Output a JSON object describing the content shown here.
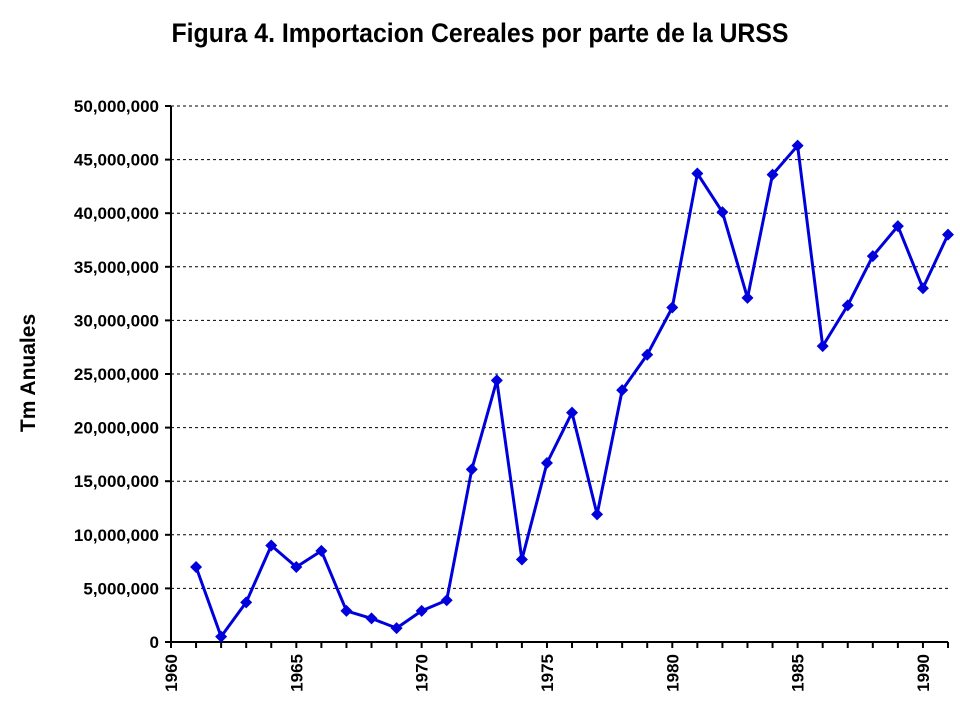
{
  "chart_data": {
    "type": "line",
    "title": "Figura 4. Importacion Cereales por parte de la URSS",
    "xlabel": "",
    "ylabel": "Tm Anuales",
    "xlim": [
      1960,
      1991
    ],
    "ylim": [
      0,
      50000000
    ],
    "x_ticks": [
      1960,
      1965,
      1970,
      1975,
      1980,
      1985,
      1990
    ],
    "x_tick_labels": [
      "1960",
      "1965",
      "1970",
      "1975",
      "1980",
      "1985",
      "1990"
    ],
    "y_ticks": [
      0,
      5000000,
      10000000,
      15000000,
      20000000,
      25000000,
      30000000,
      35000000,
      40000000,
      45000000,
      50000000
    ],
    "y_tick_labels": [
      "0",
      "5,000,000",
      "10,000,000",
      "15,000,000",
      "20,000,000",
      "25,000,000",
      "30,000,000",
      "35,000,000",
      "40,000,000",
      "45,000,000",
      "50,000,000"
    ],
    "grid": "horizontal dashed",
    "legend": "none",
    "colors": {
      "series": "#0000dd",
      "grid": "#000000",
      "axis": "#000000"
    },
    "series": [
      {
        "marker": "diamond",
        "x": [
          1961,
          1962,
          1963,
          1964,
          1965,
          1966,
          1967,
          1968,
          1969,
          1970,
          1971,
          1972,
          1973,
          1974,
          1975,
          1976,
          1977,
          1978,
          1979,
          1980,
          1981,
          1982,
          1983,
          1984,
          1985,
          1986,
          1987,
          1988,
          1989,
          1990,
          1991
        ],
        "values": [
          7000000,
          500000,
          3700000,
          9000000,
          7000000,
          8500000,
          2900000,
          2200000,
          1300000,
          2900000,
          3900000,
          16100000,
          24400000,
          7700000,
          16700000,
          21400000,
          11900000,
          23500000,
          26800000,
          31200000,
          43700000,
          40100000,
          32100000,
          43600000,
          46300000,
          27600000,
          31400000,
          36000000,
          38800000,
          33000000,
          38000000
        ]
      }
    ]
  }
}
